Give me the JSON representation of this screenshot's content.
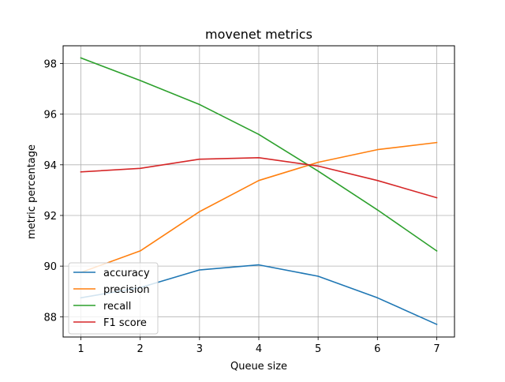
{
  "chart_data": {
    "type": "line",
    "title": "movenet metrics",
    "xlabel": "Queue size",
    "ylabel": "metric percentage",
    "x": [
      1,
      2,
      3,
      4,
      5,
      6,
      7
    ],
    "xlim": [
      0.7,
      7.3
    ],
    "ylim": [
      87.2,
      98.7
    ],
    "xticks": [
      1,
      2,
      3,
      4,
      5,
      6,
      7
    ],
    "yticks": [
      88,
      90,
      92,
      94,
      96,
      98
    ],
    "grid": true,
    "legend_position": "lower-left",
    "series": [
      {
        "name": "accuracy",
        "color": "#1f77b4",
        "values": [
          88.75,
          89.15,
          89.85,
          90.05,
          89.6,
          88.75,
          87.7
        ]
      },
      {
        "name": "precision",
        "color": "#ff7f0e",
        "values": [
          89.75,
          90.6,
          92.15,
          93.38,
          94.1,
          94.6,
          94.88
        ]
      },
      {
        "name": "recall",
        "color": "#2ca02c",
        "values": [
          98.22,
          97.33,
          96.38,
          95.2,
          93.75,
          92.22,
          90.6
        ]
      },
      {
        "name": "F1 score",
        "color": "#d62728",
        "values": [
          93.72,
          93.86,
          94.22,
          94.28,
          93.95,
          93.38,
          92.7
        ]
      }
    ]
  }
}
